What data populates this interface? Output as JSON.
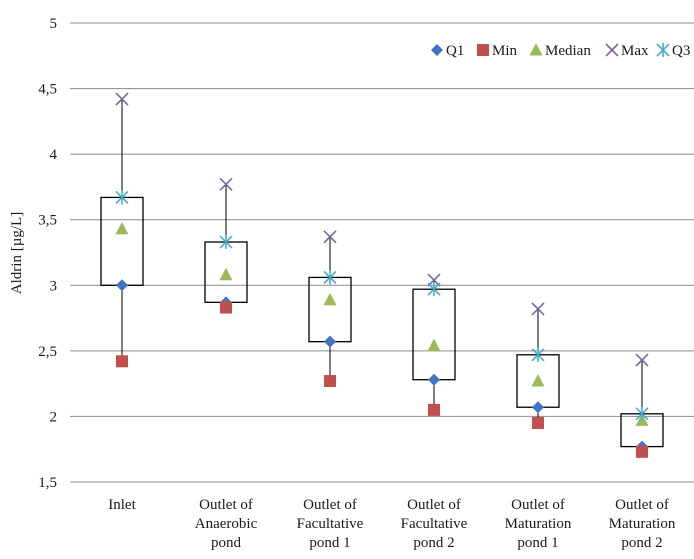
{
  "chart_data": {
    "type": "box",
    "ylabel": "Aldrin [µg/L]",
    "xlabel": "",
    "ylim": [
      1.5,
      5
    ],
    "yticks": [
      "1,5",
      "2",
      "2,5",
      "3",
      "3,5",
      "4",
      "4,5",
      "5"
    ],
    "ytick_values": [
      1.5,
      2,
      2.5,
      3,
      3.5,
      4,
      4.5,
      5
    ],
    "grid": true,
    "legend_position": "top-right",
    "categories": [
      [
        "Inlet"
      ],
      [
        "Outlet of",
        "Anaerobic",
        "pond"
      ],
      [
        "Outlet of",
        "Facultative",
        "pond 1"
      ],
      [
        "Outlet of",
        "Facultative",
        "pond 2"
      ],
      [
        "Outlet of",
        "Maturation",
        "pond 1"
      ],
      [
        "Outlet of",
        "Maturation",
        "pond 2"
      ]
    ],
    "series": [
      {
        "name": "Q1",
        "values": [
          3.0,
          2.87,
          2.57,
          2.28,
          2.07,
          1.77
        ]
      },
      {
        "name": "Min",
        "values": [
          2.42,
          2.83,
          2.27,
          2.05,
          1.95,
          1.73
        ]
      },
      {
        "name": "Median",
        "values": [
          3.43,
          3.08,
          2.89,
          2.54,
          2.27,
          1.97
        ]
      },
      {
        "name": "Max",
        "values": [
          4.42,
          3.77,
          3.37,
          3.04,
          2.82,
          2.43
        ]
      },
      {
        "name": "Q3",
        "values": [
          3.67,
          3.33,
          3.06,
          2.97,
          2.47,
          2.02
        ]
      }
    ],
    "colors": {
      "Q1": "#4472c4",
      "Min": "#c0504d",
      "Median": "#9bbb59",
      "Max": "#8064a2",
      "Q3": "#4bacc6",
      "box": "#000000",
      "grid": "#8c8c8c"
    }
  }
}
